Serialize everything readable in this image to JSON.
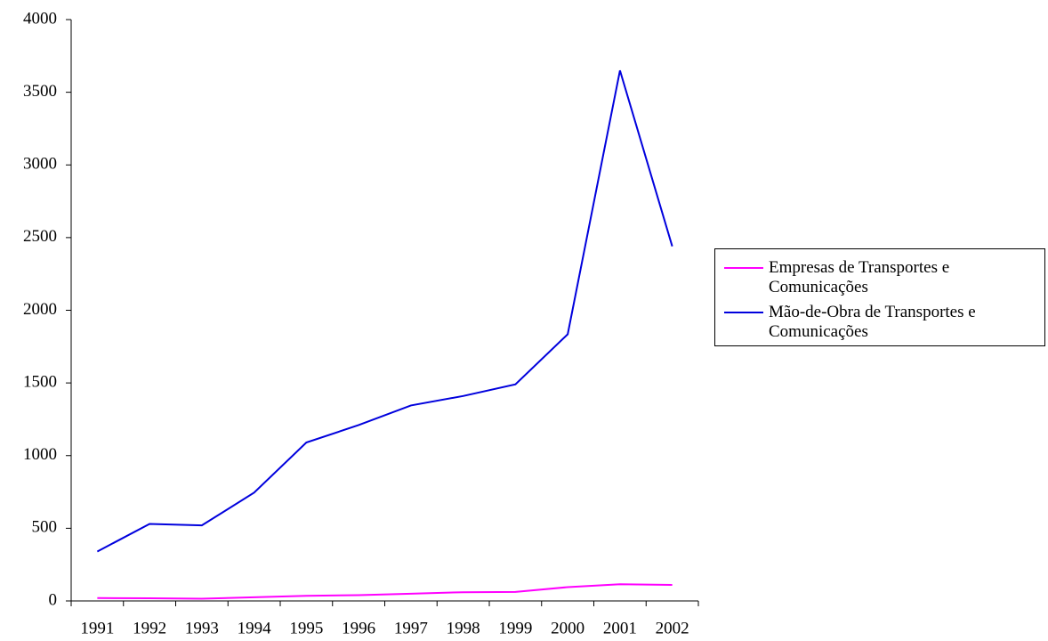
{
  "chart_data": {
    "type": "line",
    "categories": [
      "1991",
      "1992",
      "1993",
      "1994",
      "1995",
      "1996",
      "1997",
      "1998",
      "1999",
      "2000",
      "2001",
      "2002"
    ],
    "series": [
      {
        "name": "Empresas de Transportes e Comunicações",
        "color": "#ff00ff",
        "values": [
          20,
          18,
          15,
          25,
          35,
          40,
          50,
          60,
          62,
          95,
          115,
          110
        ]
      },
      {
        "name": "Mão-de-Obra de Transportes e Comunicações",
        "color": "#0000dd",
        "values": [
          340,
          530,
          520,
          745,
          1090,
          1210,
          1345,
          1410,
          1490,
          1835,
          3650,
          2440
        ]
      }
    ],
    "ylim": [
      0,
      4000
    ],
    "yticks": [
      0,
      500,
      1000,
      1500,
      2000,
      2500,
      3000,
      3500,
      4000
    ],
    "legend": "right"
  }
}
